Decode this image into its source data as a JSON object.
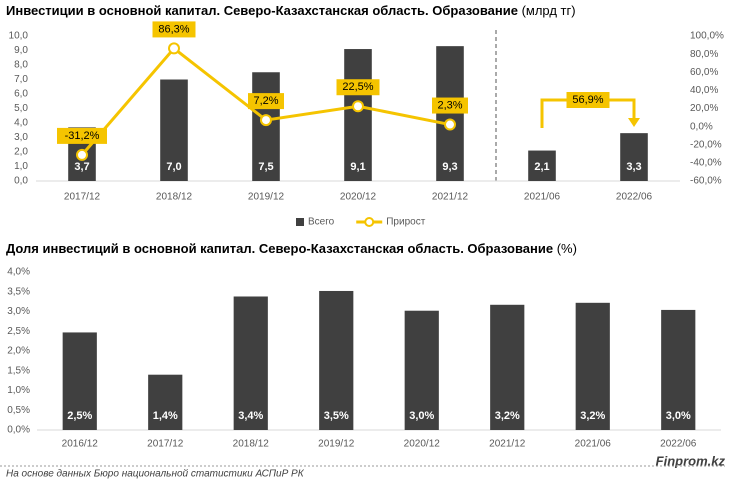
{
  "chart_data": [
    {
      "type": "bar",
      "title": "Инвестиции в основной капитал. Северо-Казахстанская область. Образование",
      "title_unit": "(млрд тг)",
      "categories": [
        "2017/12",
        "2018/12",
        "2019/12",
        "2020/12",
        "2021/12",
        "2021/06",
        "2022/06"
      ],
      "series": [
        {
          "name": "Всего",
          "type": "bar",
          "color": "#404040",
          "values": [
            3.7,
            7.0,
            7.5,
            9.1,
            9.3,
            2.1,
            3.3
          ],
          "value_labels": [
            "3,7",
            "7,0",
            "7,5",
            "9,1",
            "9,3",
            "2,1",
            "3,3"
          ]
        },
        {
          "name": "Прирост",
          "type": "line",
          "axis": "y2",
          "color": "#f5c400",
          "values": [
            -31.2,
            86.3,
            7.2,
            22.5,
            2.3,
            null,
            null
          ],
          "value_labels": [
            "-31,2%",
            "86,3%",
            "7,2%",
            "22,5%",
            "2,3%",
            null,
            null
          ]
        }
      ],
      "annotation": "56,9%",
      "ylim": [
        0,
        10
      ],
      "yticks": [
        {
          "value": 0,
          "label": "0,0"
        },
        {
          "value": 1,
          "label": "1,0"
        },
        {
          "value": 2,
          "label": "2,0"
        },
        {
          "value": 3,
          "label": "3,0"
        },
        {
          "value": 4,
          "label": "4,0"
        },
        {
          "value": 5,
          "label": "5,0"
        },
        {
          "value": 6,
          "label": "6,0"
        },
        {
          "value": 7,
          "label": "7,0"
        },
        {
          "value": 8,
          "label": "8,0"
        },
        {
          "value": 9,
          "label": "9,0"
        },
        {
          "value": 10,
          "label": "10,0"
        }
      ],
      "y2lim": [
        -60,
        100
      ],
      "y2ticks": [
        {
          "value": -60,
          "label": "-60,0%"
        },
        {
          "value": -40,
          "label": "-40,0%"
        },
        {
          "value": -20,
          "label": "-20,0%"
        },
        {
          "value": 0,
          "label": "0,0%"
        },
        {
          "value": 20,
          "label": "20,0%"
        },
        {
          "value": 40,
          "label": "40,0%"
        },
        {
          "value": 60,
          "label": "60,0%"
        },
        {
          "value": 80,
          "label": "80,0%"
        },
        {
          "value": 100,
          "label": "100,0%"
        }
      ],
      "legend": "bottom"
    },
    {
      "type": "bar",
      "title": "Доля инвестиций в основной капитал. Северо-Казахстанская область. Образование",
      "title_unit": "(%)",
      "categories": [
        "2016/12",
        "2017/12",
        "2018/12",
        "2019/12",
        "2020/12",
        "2021/12",
        "2021/06",
        "2022/06"
      ],
      "series": [
        {
          "type": "bar",
          "color": "#404040",
          "values": [
            2.47,
            1.4,
            3.38,
            3.52,
            3.02,
            3.17,
            3.22,
            3.04
          ],
          "value_labels": [
            "2,5%",
            "1,4%",
            "3,4%",
            "3,5%",
            "3,0%",
            "3,2%",
            "3,2%",
            "3,0%"
          ]
        }
      ],
      "ylim": [
        0,
        4
      ],
      "yticks": [
        {
          "value": 0,
          "label": "0,0%"
        },
        {
          "value": 0.5,
          "label": "0,5%"
        },
        {
          "value": 1,
          "label": "1,0%"
        },
        {
          "value": 1.5,
          "label": "1,5%"
        },
        {
          "value": 2,
          "label": "2,0%"
        },
        {
          "value": 2.5,
          "label": "2,5%"
        },
        {
          "value": 3,
          "label": "3,0%"
        },
        {
          "value": 3.5,
          "label": "3,5%"
        },
        {
          "value": 4,
          "label": "4,0%"
        }
      ]
    }
  ],
  "footer": {
    "source": "На основе данных Бюро национальной статистики АСПиР РК",
    "brand": "Finprom.kz"
  }
}
